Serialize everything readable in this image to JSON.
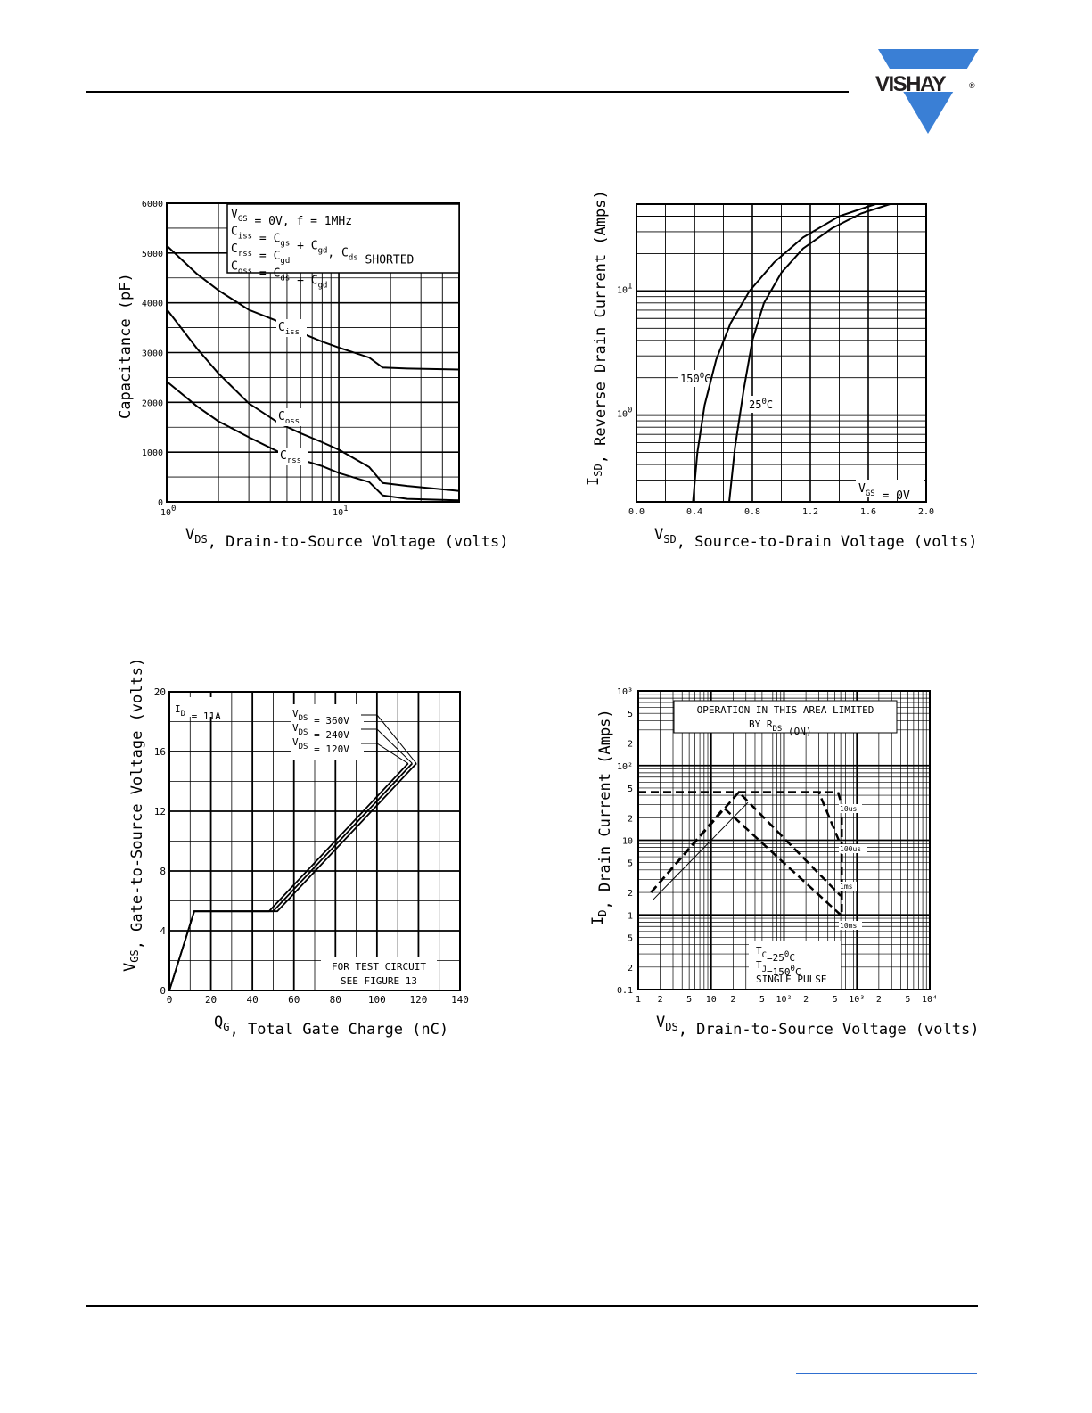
{
  "header": {
    "brand": "VISHAY",
    "brand_mark": "®",
    "brand_color": "#3a7fd5"
  },
  "chart_data": [
    {
      "type": "line",
      "id": "capacitance",
      "xlabel": "V_DS, Drain-to-Source Voltage (volts)",
      "xlabel_parts": [
        "V",
        "DS",
        ", Drain-to-Source Voltage (volts)"
      ],
      "ylabel": "Capacitance (pF)",
      "x_scale": "log",
      "xlim": [
        1,
        50
      ],
      "ylim": [
        0,
        6000
      ],
      "y_ticks": [
        "0",
        "1000",
        "2000",
        "3000",
        "4000",
        "5000",
        "6000"
      ],
      "x_ticks": [
        {
          "base": "10",
          "exp": "0"
        },
        {
          "base": "10",
          "exp": "1"
        }
      ],
      "conditions": [
        "V_GS = 0V, f = 1MHz",
        "C_iss = C_gs + C_gd, C_ds SHORTED",
        "C_rss = C_gd",
        "C_oss = C_ds + C_gd"
      ],
      "series": [
        {
          "name": "Ciss",
          "label_base": "C",
          "label_sub": "iss",
          "x": [
            1,
            1.5,
            2,
            3,
            4.5,
            6,
            8,
            10,
            15,
            18,
            25,
            50
          ],
          "y": [
            5150,
            4580,
            4250,
            3860,
            3620,
            3400,
            3220,
            3100,
            2900,
            2700,
            2680,
            2660
          ]
        },
        {
          "name": "Coss",
          "label_base": "C",
          "label_sub": "oss",
          "x": [
            1,
            1.5,
            2,
            3,
            4.5,
            6,
            8,
            10,
            15,
            18,
            25,
            50
          ],
          "y": [
            3870,
            3080,
            2580,
            1980,
            1580,
            1380,
            1200,
            1050,
            700,
            380,
            320,
            220
          ]
        },
        {
          "name": "Crss",
          "label_base": "C",
          "label_sub": "rss",
          "x": [
            1,
            1.5,
            2,
            3,
            4.5,
            6,
            8,
            10,
            15,
            18,
            25,
            50
          ],
          "y": [
            2420,
            1920,
            1620,
            1300,
            1000,
            850,
            720,
            580,
            400,
            130,
            60,
            30
          ]
        }
      ]
    },
    {
      "type": "line",
      "id": "reverse-drain",
      "xlabel": "V_SD, Source-to-Drain Voltage (volts)",
      "xlabel_parts": [
        "V",
        "SD",
        ", Source-to-Drain Voltage (volts)"
      ],
      "ylabel": "I_SD, Reverse Drain Current (Amps)",
      "ylabel_parts": [
        "I",
        "SD",
        ", Reverse Drain Current (Amps)"
      ],
      "y_scale": "log",
      "xlim": [
        0,
        2.0
      ],
      "ylim": [
        0.2,
        50
      ],
      "x_ticks": [
        "0.0",
        "0.4",
        "0.8",
        "1.2",
        "1.6",
        "2.0"
      ],
      "y_ticks": [
        {
          "base": "10",
          "exp": "0"
        },
        {
          "base": "10",
          "exp": "1"
        }
      ],
      "annotation": "V_GS = 0V",
      "annotation_parts": [
        "V",
        "GS",
        " = 0V"
      ],
      "series": [
        {
          "name": "150°C",
          "label_base": "150",
          "label_sup": "0",
          "label_end": "C",
          "x": [
            0.39,
            0.42,
            0.47,
            0.55,
            0.65,
            0.78,
            0.95,
            1.15,
            1.4,
            1.65
          ],
          "y": [
            0.2,
            0.5,
            1.2,
            2.8,
            5.5,
            10,
            17,
            27,
            40,
            50
          ]
        },
        {
          "name": "25°C",
          "label_base": "25",
          "label_sup": "0",
          "label_end": "C",
          "x": [
            0.64,
            0.68,
            0.74,
            0.8,
            0.88,
            1.0,
            1.15,
            1.35,
            1.55,
            1.75
          ],
          "y": [
            0.2,
            0.55,
            1.6,
            4,
            8,
            14,
            22,
            32,
            42,
            50
          ]
        }
      ]
    },
    {
      "type": "line",
      "id": "gate-charge",
      "xlabel": "Q_G, Total Gate Charge (nC)",
      "xlabel_parts": [
        "Q",
        "G",
        ", Total Gate Charge (nC)"
      ],
      "ylabel": "V_GS, Gate-to-Source Voltage (volts)",
      "ylabel_parts": [
        "V",
        "GS",
        ", Gate-to-Source Voltage (volts)"
      ],
      "xlim": [
        0,
        140
      ],
      "ylim": [
        0,
        20
      ],
      "x_ticks": [
        "0",
        "20",
        "40",
        "60",
        "80",
        "100",
        "120",
        "140"
      ],
      "y_ticks": [
        "0",
        "4",
        "8",
        "12",
        "16",
        "20"
      ],
      "id_label": "I_D = 11A",
      "id_label_parts": [
        "I",
        "D",
        " = 11A"
      ],
      "test_circuit": [
        "FOR TEST CIRCUIT",
        "SEE FIGURE 13"
      ],
      "series": [
        {
          "name": "V_DS = 360V",
          "label_parts": [
            "V",
            "DS",
            " = 360V"
          ],
          "x": [
            0,
            12,
            52,
            119
          ],
          "y": [
            0,
            5.3,
            5.3,
            15.2
          ]
        },
        {
          "name": "V_DS = 240V",
          "label_parts": [
            "V",
            "DS",
            " = 240V"
          ],
          "x": [
            0,
            12,
            50,
            117
          ],
          "y": [
            0,
            5.3,
            5.3,
            15.2
          ]
        },
        {
          "name": "V_DS = 120V",
          "label_parts": [
            "V",
            "DS",
            " = 120V"
          ],
          "x": [
            0,
            12,
            48,
            115
          ],
          "y": [
            0,
            5.3,
            5.3,
            15.2
          ]
        }
      ]
    },
    {
      "type": "line",
      "id": "safe-operating-area",
      "xlabel": "V_DS, Drain-to-Source Voltage (volts)",
      "xlabel_parts": [
        "V",
        "DS",
        ", Drain-to-Source Voltage (volts)"
      ],
      "ylabel": "I_D, Drain Current (Amps)",
      "ylabel_parts": [
        "I",
        "D",
        ", Drain Current (Amps)"
      ],
      "x_scale": "log",
      "y_scale": "log",
      "xlim": [
        1,
        10000
      ],
      "ylim": [
        0.1,
        1000
      ],
      "x_ticks": [
        "1",
        "2",
        "5",
        "10",
        "2",
        "5",
        "10²",
        "2",
        "5",
        "10³",
        "2",
        "5",
        "10⁴"
      ],
      "y_ticks": [
        "0.1",
        "2",
        "5",
        "1",
        "2",
        "5",
        "10",
        "2",
        "5",
        "10²",
        "2",
        "5",
        "10³"
      ],
      "annotation": [
        "OPERATION IN THIS AREA LIMITED",
        "BY R_DS (ON)"
      ],
      "conditions": [
        "T_C=25°C",
        "T_J=150°C",
        "SINGLE PULSE"
      ],
      "conditions_parts": [
        [
          "T",
          "C",
          "=25",
          "0",
          "C"
        ],
        [
          "T",
          "J",
          "=150",
          "0",
          "C"
        ],
        [
          "SINGLE PULSE",
          "",
          "",
          "",
          ""
        ]
      ],
      "series": [
        {
          "name": "10us",
          "x": [
            1,
            550,
            620,
            620
          ],
          "y": [
            44,
            44,
            30,
            1
          ]
        },
        {
          "name": "100us",
          "x": [
            1,
            300,
            620
          ],
          "y": [
            44,
            44,
            8
          ]
        },
        {
          "name": "1ms",
          "x": [
            1.5,
            24,
            600
          ],
          "y": [
            2.0,
            44,
            1.8
          ]
        },
        {
          "name": "10ms",
          "x": [
            1.5,
            15,
            600
          ],
          "y": [
            2.0,
            27,
            1.0
          ]
        },
        {
          "name": "R_DS(on) limit",
          "x": [
            1.6,
            32
          ],
          "y": [
            1.6,
            32
          ]
        }
      ]
    }
  ]
}
